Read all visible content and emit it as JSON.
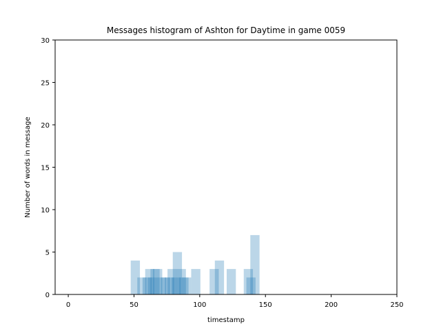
{
  "chart_data": {
    "type": "bar",
    "title": "Messages histogram of Ashton for Daytime in game 0059",
    "xlabel": "timestamp",
    "ylabel": "Number of words in message",
    "xlim": [
      -10,
      250
    ],
    "ylim": [
      0,
      30
    ],
    "xticks": [
      0,
      50,
      100,
      150,
      200,
      250
    ],
    "yticks": [
      0,
      5,
      10,
      15,
      20,
      25,
      30
    ],
    "bar_width": 7,
    "bar_color": "#1f77b4",
    "bar_opacity": 0.3,
    "grid": false,
    "bars": [
      {
        "x": 51,
        "value": 4
      },
      {
        "x": 56,
        "value": 2
      },
      {
        "x": 60,
        "value": 2
      },
      {
        "x": 62,
        "value": 3
      },
      {
        "x": 64,
        "value": 2
      },
      {
        "x": 66,
        "value": 3
      },
      {
        "x": 68,
        "value": 3
      },
      {
        "x": 71,
        "value": 2
      },
      {
        "x": 74,
        "value": 2
      },
      {
        "x": 77,
        "value": 2
      },
      {
        "x": 79,
        "value": 3
      },
      {
        "x": 82,
        "value": 2
      },
      {
        "x": 83,
        "value": 5
      },
      {
        "x": 86,
        "value": 3
      },
      {
        "x": 88,
        "value": 2
      },
      {
        "x": 90,
        "value": 2
      },
      {
        "x": 97,
        "value": 3
      },
      {
        "x": 111,
        "value": 3
      },
      {
        "x": 115,
        "value": 4
      },
      {
        "x": 124,
        "value": 3
      },
      {
        "x": 137,
        "value": 3
      },
      {
        "x": 139,
        "value": 2
      },
      {
        "x": 142,
        "value": 7
      }
    ]
  }
}
